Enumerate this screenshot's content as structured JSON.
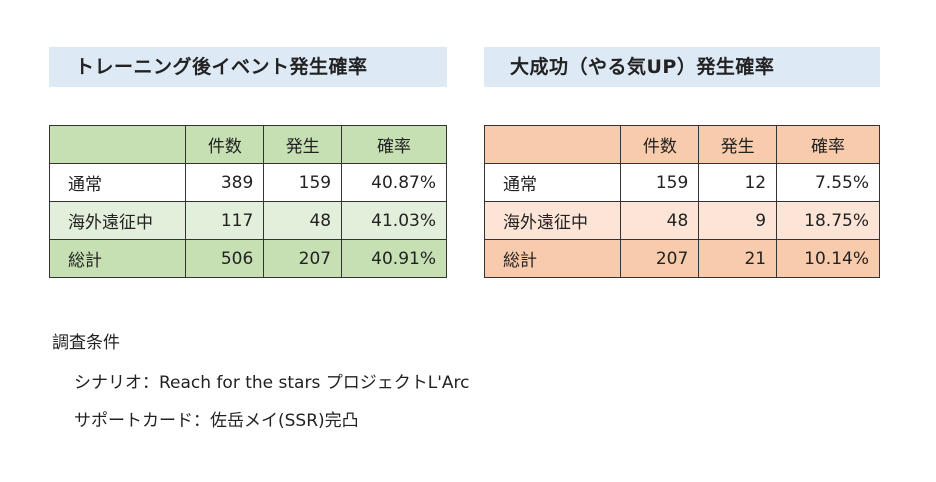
{
  "left_panel": {
    "title": "トレーニング後イベント発生確率",
    "headers": [
      "",
      "件数",
      "発生",
      "確率"
    ],
    "rows": [
      [
        "通常",
        "389",
        "159",
        "40.87%"
      ],
      [
        "海外遠征中",
        "117",
        "48",
        "41.03%"
      ],
      [
        "総計",
        "506",
        "207",
        "40.91%"
      ]
    ]
  },
  "right_panel": {
    "title": "大成功（やる気UP）発生確率",
    "headers": [
      "",
      "件数",
      "発生",
      "確率"
    ],
    "rows": [
      [
        "通常",
        "159",
        "12",
        "7.55%"
      ],
      [
        "海外遠征中",
        "48",
        "9",
        "18.75%"
      ],
      [
        "総計",
        "207",
        "21",
        "10.14%"
      ]
    ]
  },
  "notes": {
    "heading": "調査条件",
    "scenario": "シナリオ：Reach for the stars プロジェクトL'Arc",
    "support_card": "サポートカード：佐岳メイ(SSR)完凸"
  },
  "colors": {
    "title_bg": "#dde9f5",
    "green_dark": "#c6e0b4",
    "green_light": "#e2efda",
    "orange_dark": "#f8cbad",
    "orange_light": "#fce4d6"
  }
}
